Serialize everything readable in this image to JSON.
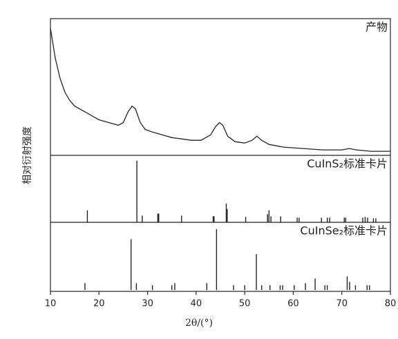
{
  "chart_data": [
    {
      "type": "line",
      "label": "产物",
      "ylabel": "相对衍射强度",
      "color": "#222",
      "x": [
        10,
        11,
        12,
        13,
        14,
        15,
        16,
        17,
        18,
        19,
        20,
        21,
        22,
        23,
        24,
        25,
        26,
        26.8,
        27.5,
        28.5,
        29.5,
        31,
        33,
        35,
        37,
        39,
        41,
        43,
        44,
        44.8,
        45.5,
        46.5,
        48,
        50,
        51.5,
        52.5,
        53.5,
        55,
        58,
        62,
        66,
        70,
        71.5,
        73,
        76,
        80
      ],
      "values": [
        93,
        71,
        56,
        46,
        40,
        36,
        34,
        32,
        30,
        28,
        26,
        25,
        24,
        23,
        22,
        24,
        32,
        36,
        34,
        24,
        19,
        17,
        15,
        13,
        12,
        11,
        11,
        15,
        21,
        24,
        22,
        14,
        10,
        9,
        11,
        14,
        11,
        8,
        6,
        5,
        4,
        4,
        5,
        4,
        3,
        3
      ],
      "ylim": [
        0,
        100
      ]
    },
    {
      "type": "stem",
      "label": "CuInS₂标准卡片",
      "color": "#222",
      "x": [
        17.6,
        27.8,
        28.9,
        32.1,
        32.3,
        37.0,
        43.5,
        43.7,
        46.2,
        46.4,
        50.2,
        54.7,
        55.0,
        55.4,
        57.4,
        60.8,
        61.2,
        65.8,
        67.0,
        67.5,
        70.5,
        70.8,
        74.3,
        74.8,
        75.3,
        76.5,
        77.0
      ],
      "values": [
        18,
        92,
        10,
        13,
        13,
        10,
        9,
        9,
        28,
        20,
        8,
        12,
        18,
        9,
        9,
        7,
        7,
        7,
        7,
        7,
        7,
        7,
        7,
        8,
        7,
        6,
        6
      ],
      "ylim": [
        0,
        100
      ]
    },
    {
      "type": "stem",
      "label": "CuInSe₂标准卡片",
      "color": "#222",
      "xlabel": "2θ/(°)",
      "x": [
        17.1,
        26.6,
        27.7,
        31.0,
        35.0,
        35.6,
        42.2,
        44.2,
        47.7,
        50.0,
        52.4,
        53.5,
        55.2,
        57.3,
        57.8,
        60.2,
        62.5,
        64.5,
        66.5,
        67.0,
        71.1,
        71.6,
        72.8,
        75.2,
        75.7
      ],
      "values": [
        10,
        75,
        10,
        7,
        7,
        10,
        10,
        90,
        7,
        7,
        53,
        7,
        7,
        7,
        7,
        7,
        10,
        17,
        7,
        7,
        20,
        12,
        7,
        7,
        7
      ],
      "ylim": [
        0,
        100
      ],
      "xlim": [
        10,
        80
      ],
      "xticks": [
        10,
        20,
        30,
        40,
        50,
        60,
        70,
        80
      ]
    }
  ]
}
